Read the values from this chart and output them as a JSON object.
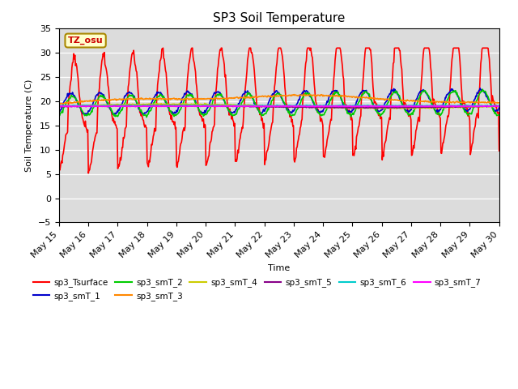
{
  "title": "SP3 Soil Temperature",
  "ylabel": "Soil Temperature (C)",
  "xlabel": "Time",
  "ylim": [
    -5,
    35
  ],
  "annotation": "TZ_osu",
  "bg_color": "#dcdcdc",
  "series": {
    "sp3_Tsurface": {
      "color": "#ff0000",
      "lw": 1.2
    },
    "sp3_smT_1": {
      "color": "#0000cc",
      "lw": 1.2
    },
    "sp3_smT_2": {
      "color": "#00cc00",
      "lw": 1.2
    },
    "sp3_smT_3": {
      "color": "#ff8800",
      "lw": 1.2
    },
    "sp3_smT_4": {
      "color": "#cccc00",
      "lw": 1.2
    },
    "sp3_smT_5": {
      "color": "#880088",
      "lw": 1.2
    },
    "sp3_smT_6": {
      "color": "#00cccc",
      "lw": 1.2
    },
    "sp3_smT_7": {
      "color": "#ff00ff",
      "lw": 1.2
    }
  },
  "xtick_labels": [
    "May 15",
    "May 16",
    "May 17",
    "May 18",
    "May 19",
    "May 20",
    "May 21",
    "May 22",
    "May 23",
    "May 24",
    "May 25",
    "May 26",
    "May 27",
    "May 28",
    "May 29",
    "May 30"
  ],
  "ytick_vals": [
    -5,
    0,
    5,
    10,
    15,
    20,
    25,
    30,
    35
  ]
}
